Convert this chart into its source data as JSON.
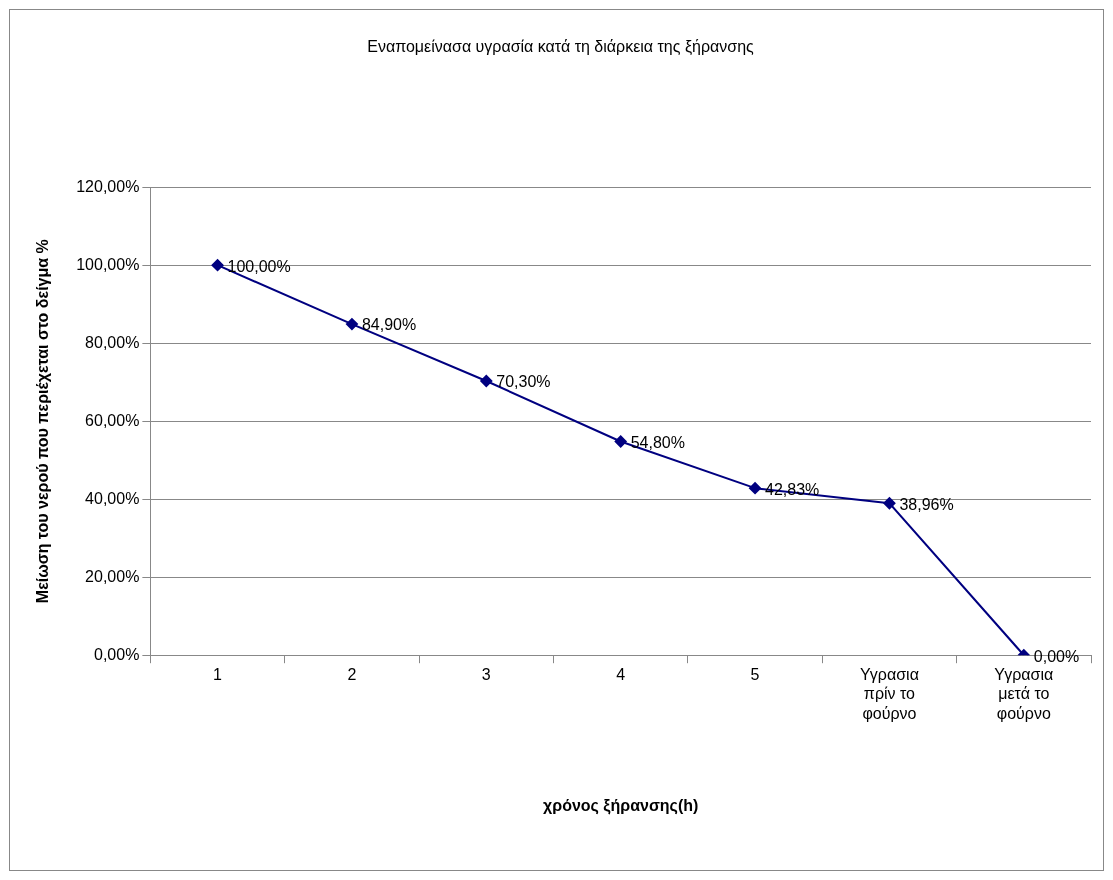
{
  "chart_data": {
    "type": "line",
    "title": "Εναπομείνασα υγρασία κατά τη διάρκεια της ξήρανσης",
    "xlabel": "χρόνος ξήρανσης(h)",
    "ylabel": "Μείωση του νερού που περιέχεται στο δείγμα %",
    "categories": [
      "1",
      "2",
      "3",
      "4",
      "5",
      "Υγρασια πρίν το φούρνο",
      "Υγρασια μετά το φούρνο"
    ],
    "values": [
      100,
      84.9,
      70.3,
      54.8,
      42.83,
      38.96,
      0
    ],
    "value_labels": [
      "100,00%",
      "84,90%",
      "70,30%",
      "54,80%",
      "42,83%",
      "38,96%",
      "0,00%"
    ],
    "color": "#000080",
    "marker": "diamond",
    "line_style": "solid",
    "ylim": [
      0,
      120
    ],
    "yticks": [
      {
        "value": 0,
        "label": "0,00%"
      },
      {
        "value": 20,
        "label": "20,00%"
      },
      {
        "value": 40,
        "label": "40,00%"
      },
      {
        "value": 60,
        "label": "60,00%"
      },
      {
        "value": 80,
        "label": "80,00%"
      },
      {
        "value": 100,
        "label": "100,00%"
      },
      {
        "value": 120,
        "label": "120,00%"
      }
    ],
    "grid": "y",
    "legend": false
  }
}
